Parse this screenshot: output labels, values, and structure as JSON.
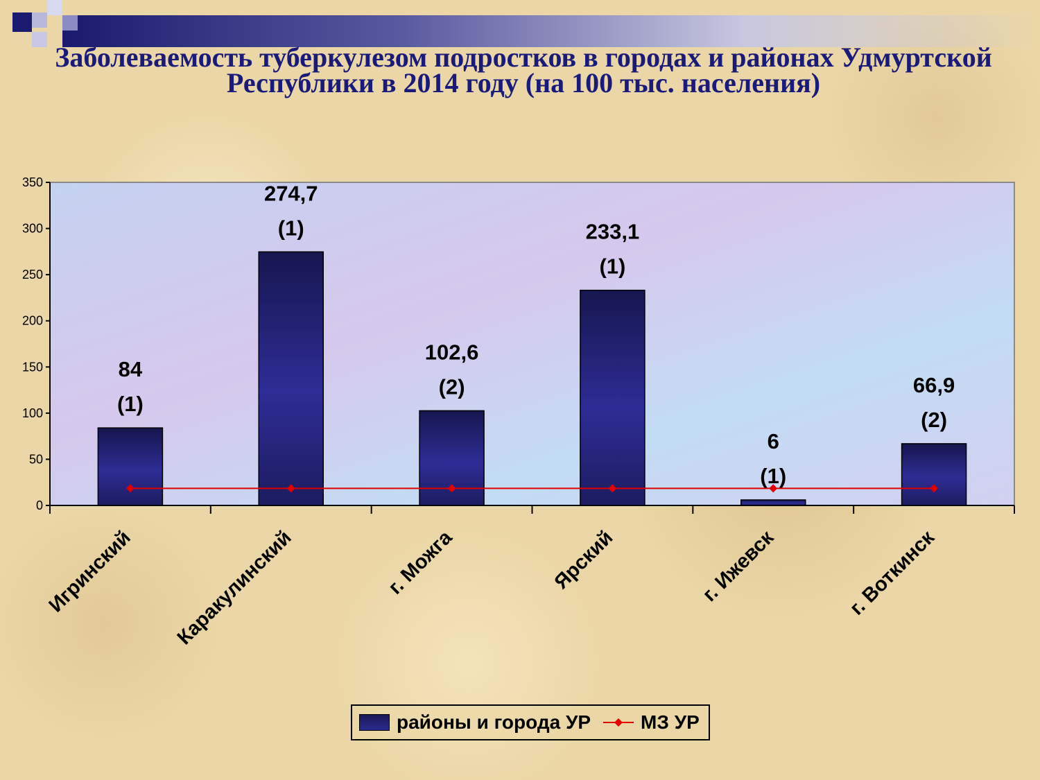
{
  "slide": {
    "title": "Заболеваемость туберкулезом подростков в городах и районах Удмуртской Республики в 2014 году (на 100 тыс. населения)"
  },
  "colors": {
    "bar": "#25257f",
    "bar_dark": "#16164f",
    "line": "#e00000",
    "title": "#1a1a7a",
    "plot_area": "#c8d8f0"
  },
  "chart_data": {
    "type": "bar",
    "title": "",
    "xlabel": "",
    "ylabel": "",
    "ylim": [
      0,
      350
    ],
    "yticks": [
      0,
      50,
      100,
      150,
      200,
      250,
      300,
      350
    ],
    "grid": false,
    "legend_position": "bottom",
    "categories": [
      "Игринский",
      "Каракулинский",
      "г. Можга",
      "Ярский",
      "г. Ижевск",
      "г. Воткинск"
    ],
    "series": [
      {
        "name": "районы и города УР",
        "type": "bar",
        "values": [
          84,
          274.7,
          102.6,
          233.1,
          6,
          66.9
        ],
        "labels": [
          "84",
          "274,7",
          "102,6",
          "233,1",
          "6",
          "66,9"
        ],
        "counts": [
          "(1)",
          "(1)",
          "(2)",
          "(1)",
          "(1)",
          "(2)"
        ]
      },
      {
        "name": "МЗ УР",
        "type": "line",
        "values": [
          18.5,
          18.5,
          18.5,
          18.5,
          18.5,
          18.5
        ]
      }
    ]
  }
}
